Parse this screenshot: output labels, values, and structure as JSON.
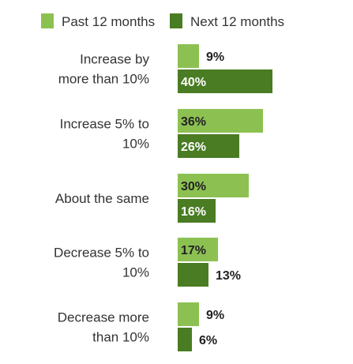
{
  "chart_data": {
    "type": "bar",
    "orientation": "horizontal",
    "legend_position": "top",
    "grid": false,
    "xlim": [
      0,
      40
    ],
    "categories": [
      [
        "Increase by",
        "more than 10%"
      ],
      [
        "Increase 5% to",
        "10%"
      ],
      [
        "About the same"
      ],
      [
        "Decrease 5% to",
        "10%"
      ],
      [
        "Decrease more",
        "than 10%"
      ]
    ],
    "series": [
      {
        "name": "Past 12 months",
        "color": "#8cc152",
        "values": [
          9,
          36,
          30,
          17,
          9
        ],
        "labels": [
          "9%",
          "36%",
          "30%",
          "17%",
          "9%"
        ]
      },
      {
        "name": "Next 12 months",
        "color": "#4a7c23",
        "values": [
          40,
          26,
          16,
          13,
          6
        ],
        "labels": [
          "40%",
          "26%",
          "16%",
          "13%",
          "6%"
        ]
      }
    ]
  }
}
